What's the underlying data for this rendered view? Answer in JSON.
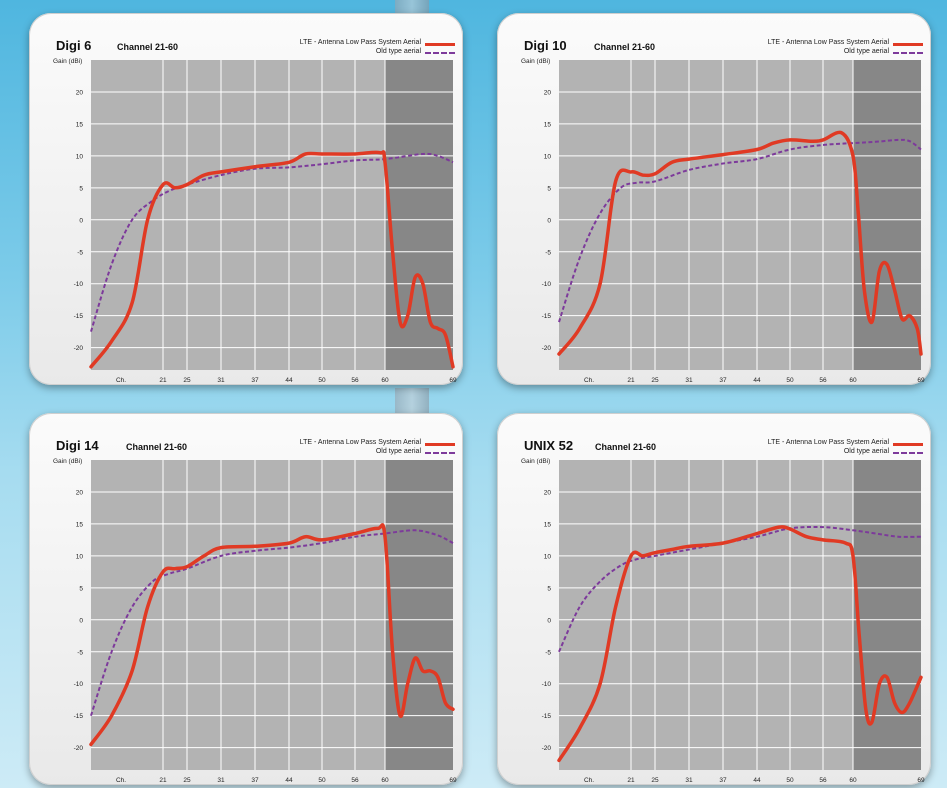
{
  "legend": {
    "new_label": "LTE - Antenna Low Pass System Aerial",
    "old_label": "Old type aerial"
  },
  "colors": {
    "new": "#e03a24",
    "old": "#7d3a9b",
    "plot_bg": "#b3b3b3",
    "filtered_bg": "#878787"
  },
  "axis": {
    "ylabel": "Gain (dBi)",
    "x_first_label": "Ch."
  },
  "charts": [
    {
      "title": "Digi 6",
      "channel": "Channel 21-60"
    },
    {
      "title": "Digi 10",
      "channel": "Channel 21-60"
    },
    {
      "title": "Digi 14",
      "channel": "Channel 21-60"
    },
    {
      "title": "UNIX 52",
      "channel": "Channel 21-60"
    }
  ],
  "chart_data": [
    {
      "type": "line",
      "title": "Digi 6",
      "subtitle": "Channel 21-60",
      "ylabel": "Gain (dBi)",
      "xticks": [
        "Ch.",
        "21",
        "25",
        "31",
        "37",
        "44",
        "50",
        "56",
        "60",
        "69"
      ],
      "yticks": [
        20,
        15,
        10,
        5,
        0,
        -5,
        -10,
        -15,
        -20
      ],
      "xlim": [
        14,
        69
      ],
      "ylim": [
        -23.5,
        25
      ],
      "shaded_region": [
        60,
        69
      ],
      "legend_position": "top-right",
      "series": [
        {
          "name": "LTE - Antenna Low Pass System Aerial",
          "style": "solid",
          "x": [
            14,
            16,
            18,
            19.5,
            21,
            23,
            25,
            28,
            31,
            37,
            44,
            47,
            50,
            56,
            59.3,
            60,
            61,
            62,
            63,
            64,
            65,
            66,
            67,
            68,
            69
          ],
          "y": [
            -23,
            -19,
            -13,
            0,
            5.5,
            5,
            5.5,
            7,
            7.5,
            8.3,
            9,
            10.3,
            10.3,
            10.3,
            10.5,
            9,
            -5,
            -16,
            -15,
            -9,
            -10,
            -16,
            -17,
            -18,
            -23
          ]
        },
        {
          "name": "Old type aerial",
          "style": "dashed",
          "x": [
            14,
            16,
            18,
            20,
            22,
            25,
            31,
            37,
            44,
            50,
            56,
            60,
            65,
            67,
            69
          ],
          "y": [
            -17.5,
            -7,
            0,
            3,
            4.5,
            5.5,
            7,
            8,
            8.2,
            8.7,
            9.3,
            9.5,
            10.3,
            10,
            9
          ]
        }
      ]
    },
    {
      "type": "line",
      "title": "Digi 10",
      "subtitle": "Channel 21-60",
      "ylabel": "Gain (dBi)",
      "xticks": [
        "Ch.",
        "21",
        "25",
        "31",
        "37",
        "44",
        "50",
        "56",
        "60",
        "69"
      ],
      "yticks": [
        20,
        15,
        10,
        5,
        0,
        -5,
        -10,
        -15,
        -20
      ],
      "xlim": [
        14,
        69
      ],
      "ylim": [
        -23.5,
        25
      ],
      "shaded_region": [
        60,
        69
      ],
      "legend_position": "top-right",
      "series": [
        {
          "name": "LTE - Antenna Low Pass System Aerial",
          "style": "solid",
          "x": [
            14,
            16,
            18,
            19.5,
            21,
            23,
            25,
            28,
            31,
            37,
            44,
            47,
            50,
            54,
            56,
            58.5,
            60,
            60.7,
            61.5,
            62.5,
            63.5,
            64.5,
            65.5,
            66.5,
            67.5,
            68.5,
            69
          ],
          "y": [
            -21,
            -17,
            -10,
            6,
            7.5,
            7,
            7.2,
            9,
            9.5,
            10.2,
            11,
            12,
            12.5,
            12.3,
            12.5,
            13.6,
            10,
            1,
            -11,
            -16,
            -8,
            -7,
            -11,
            -15.5,
            -15,
            -17,
            -21
          ]
        },
        {
          "name": "Old type aerial",
          "style": "dashed",
          "x": [
            14,
            16,
            18,
            20,
            22,
            25,
            31,
            37,
            44,
            50,
            56,
            60,
            63,
            66,
            67.5,
            69
          ],
          "y": [
            -16,
            -6,
            1,
            5,
            5.8,
            6,
            7.8,
            8.8,
            9.5,
            11,
            11.7,
            12,
            12.2,
            12.5,
            12.3,
            11
          ]
        }
      ]
    },
    {
      "type": "line",
      "title": "Digi 14",
      "subtitle": "Channel 21-60",
      "ylabel": "Gain (dBi)",
      "xticks": [
        "Ch.",
        "21",
        "25",
        "31",
        "37",
        "44",
        "50",
        "56",
        "60",
        "69"
      ],
      "yticks": [
        20,
        15,
        10,
        5,
        0,
        -5,
        -10,
        -15,
        -20
      ],
      "xlim": [
        14,
        69
      ],
      "ylim": [
        -23.5,
        25
      ],
      "shaded_region": [
        60,
        69
      ],
      "legend_position": "top-right",
      "series": [
        {
          "name": "LTE - Antenna Low Pass System Aerial",
          "style": "solid",
          "x": [
            14,
            16,
            18,
            19.5,
            21,
            23,
            25,
            28,
            31,
            37,
            44,
            47,
            50,
            56,
            59,
            60,
            61,
            62,
            63,
            64,
            65,
            66,
            67,
            68,
            69
          ],
          "y": [
            -19.5,
            -15,
            -8,
            2,
            7.5,
            8,
            8.3,
            10,
            11.3,
            11.5,
            12,
            13,
            12.5,
            13.5,
            14.3,
            13,
            -5,
            -15,
            -10,
            -6,
            -8,
            -8,
            -9,
            -13,
            -14
          ]
        },
        {
          "name": "Old type aerial",
          "style": "dashed",
          "x": [
            14,
            16,
            18,
            20,
            22,
            25,
            31,
            37,
            44,
            50,
            56,
            60,
            64,
            67,
            69
          ],
          "y": [
            -15,
            -5,
            2,
            6,
            7.2,
            8,
            10,
            10.8,
            11.3,
            12,
            13,
            13.5,
            14,
            13.2,
            12
          ]
        }
      ]
    },
    {
      "type": "line",
      "title": "UNIX 52",
      "subtitle": "Channel 21-60",
      "ylabel": "Gain (dBi)",
      "xticks": [
        "Ch.",
        "21",
        "25",
        "31",
        "37",
        "44",
        "50",
        "56",
        "60",
        "69"
      ],
      "yticks": [
        20,
        15,
        10,
        5,
        0,
        -5,
        -10,
        -15,
        -20
      ],
      "xlim": [
        14,
        69
      ],
      "ylim": [
        -23.5,
        25
      ],
      "shaded_region": [
        60,
        69
      ],
      "legend_position": "top-right",
      "series": [
        {
          "name": "LTE - Antenna Low Pass System Aerial",
          "style": "solid",
          "x": [
            14,
            16,
            18,
            19.5,
            21,
            23,
            25,
            28,
            31,
            37,
            44,
            48,
            50,
            53,
            56,
            59,
            60,
            60.8,
            61.7,
            62.5,
            63.5,
            64.5,
            65.5,
            66.5,
            67.5,
            69
          ],
          "y": [
            -22,
            -17,
            -10,
            2,
            10,
            10,
            10.5,
            11,
            11.5,
            12,
            13.5,
            14.5,
            14.2,
            13,
            12.5,
            12,
            10,
            -2,
            -14,
            -16,
            -10,
            -9,
            -13,
            -14.5,
            -13,
            -9
          ]
        },
        {
          "name": "Old type aerial",
          "style": "dashed",
          "x": [
            14,
            16,
            18,
            20,
            22,
            25,
            31,
            37,
            44,
            50,
            56,
            60,
            63,
            66,
            69
          ],
          "y": [
            -5,
            2,
            6,
            8.5,
            9.5,
            10,
            11,
            12,
            13,
            14.3,
            14.5,
            14,
            13.5,
            13,
            13
          ]
        }
      ]
    }
  ]
}
